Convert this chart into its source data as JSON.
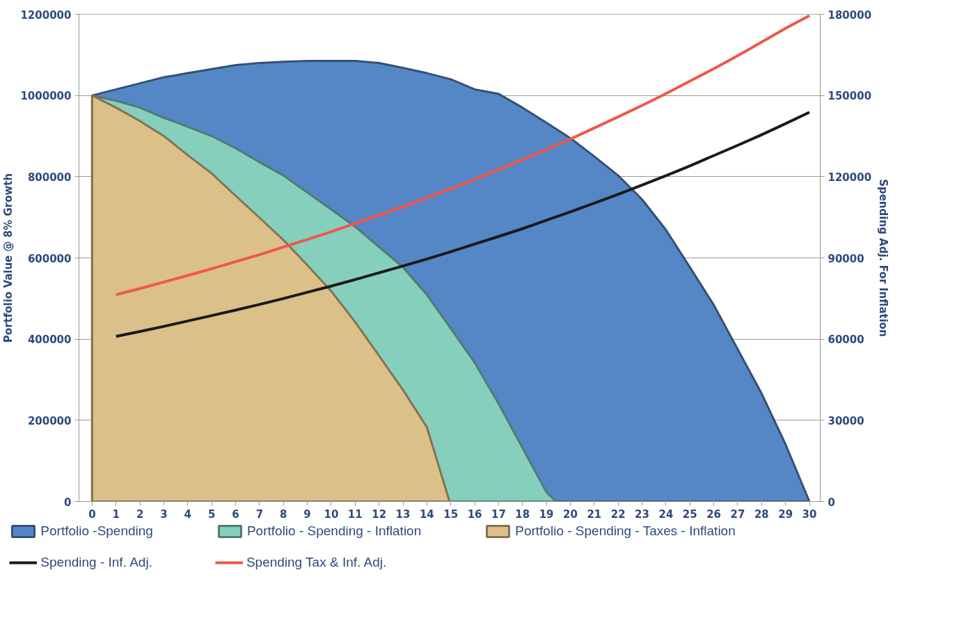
{
  "chart_data": {
    "type": "area",
    "ylabel": "Portfolio Value @ 8% Growth",
    "y2label": "Spending Adj. For Inflation",
    "xlim": [
      -0.55,
      30.45
    ],
    "xticks": [
      0,
      1,
      2,
      3,
      4,
      5,
      6,
      7,
      8,
      9,
      10,
      11,
      12,
      13,
      14,
      15,
      16,
      17,
      18,
      19,
      20,
      21,
      22,
      23,
      24,
      25,
      26,
      27,
      28,
      29,
      30
    ],
    "ylim": [
      0,
      1200000
    ],
    "yticks": [
      0,
      200000,
      400000,
      600000,
      800000,
      1000000,
      1200000
    ],
    "y2lim": [
      0,
      180000
    ],
    "y2ticks": [
      0,
      30000,
      60000,
      90000,
      120000,
      150000,
      180000
    ],
    "grid": "y",
    "legend": "bottom",
    "series": [
      {
        "name": "Portfolio -Spending",
        "type": "area",
        "color": "#5587c6",
        "x": [
          0,
          1,
          2,
          3,
          4,
          5,
          6,
          7,
          8,
          9,
          10,
          11,
          12,
          13,
          14,
          15,
          16,
          17,
          18,
          19,
          20,
          21,
          22,
          23,
          24,
          25,
          26,
          27,
          28,
          29,
          30
        ],
        "values": [
          1000000,
          1015000,
          1030000,
          1045000,
          1055000,
          1065000,
          1075000,
          1080000,
          1083000,
          1085000,
          1085000,
          1085000,
          1080000,
          1068000,
          1055000,
          1040000,
          1015000,
          1004000,
          970000,
          933000,
          895000,
          850000,
          803000,
          744000,
          669000,
          577000,
          484000,
          375000,
          266000,
          141000,
          0
        ]
      },
      {
        "name": "Portfolio - Spending - Inflation",
        "type": "area",
        "color": "#86cfbd",
        "x": [
          0,
          1,
          2,
          3,
          4,
          5,
          6,
          7,
          8,
          9,
          10,
          11,
          12,
          13,
          14,
          15,
          16,
          17,
          18,
          19,
          19.4
        ],
        "values": [
          1000000,
          987000,
          970000,
          945000,
          923000,
          900000,
          870000,
          836000,
          803000,
          761000,
          719000,
          677000,
          627000,
          577000,
          509000,
          426000,
          342000,
          241000,
          132000,
          23000,
          0
        ]
      },
      {
        "name": "Portfolio - Spending - Taxes - Inflation",
        "type": "area",
        "color": "#dcc08a",
        "x": [
          0,
          1,
          2,
          3,
          4,
          5,
          6,
          7,
          8,
          9,
          10,
          11,
          12,
          13,
          14,
          14.95
        ],
        "values": [
          1000000,
          970000,
          937000,
          900000,
          853000,
          808000,
          753000,
          699000,
          644000,
          582000,
          518000,
          442000,
          359000,
          275000,
          183000,
          0
        ]
      },
      {
        "name": "Spending - Inf. Adj.",
        "type": "line",
        "axis": "y2",
        "color": "#1a1a1a",
        "x": [
          1,
          2,
          3,
          4,
          5,
          6,
          7,
          8,
          9,
          10,
          11,
          12,
          13,
          14,
          15,
          16,
          17,
          18,
          19,
          20,
          21,
          22,
          23,
          24,
          25,
          26,
          27,
          28,
          29,
          30
        ],
        "values": [
          61000,
          62800,
          64700,
          66700,
          68700,
          70700,
          72800,
          75000,
          77300,
          79600,
          82000,
          84500,
          87000,
          89600,
          92300,
          95100,
          97900,
          100800,
          103900,
          107000,
          110200,
          113500,
          116900,
          120400,
          124000,
          127800,
          131600,
          135500,
          139600,
          143800
        ]
      },
      {
        "name": "Spending Tax & Inf. Adj.",
        "type": "line",
        "axis": "y2",
        "color": "#f0574a",
        "x": [
          1,
          2,
          3,
          4,
          5,
          6,
          7,
          8,
          9,
          10,
          11,
          12,
          13,
          14,
          15,
          16,
          17,
          18,
          19,
          20,
          21,
          22,
          23,
          24,
          25,
          26,
          27,
          28,
          29,
          30
        ],
        "values": [
          76400,
          78700,
          81100,
          83500,
          86000,
          88600,
          91200,
          94000,
          96800,
          99700,
          102700,
          105700,
          108900,
          112200,
          115500,
          119000,
          122600,
          126300,
          130000,
          133900,
          138000,
          142100,
          146300,
          150700,
          155300,
          159900,
          164700,
          169700,
          174800,
          179500
        ]
      }
    ]
  }
}
